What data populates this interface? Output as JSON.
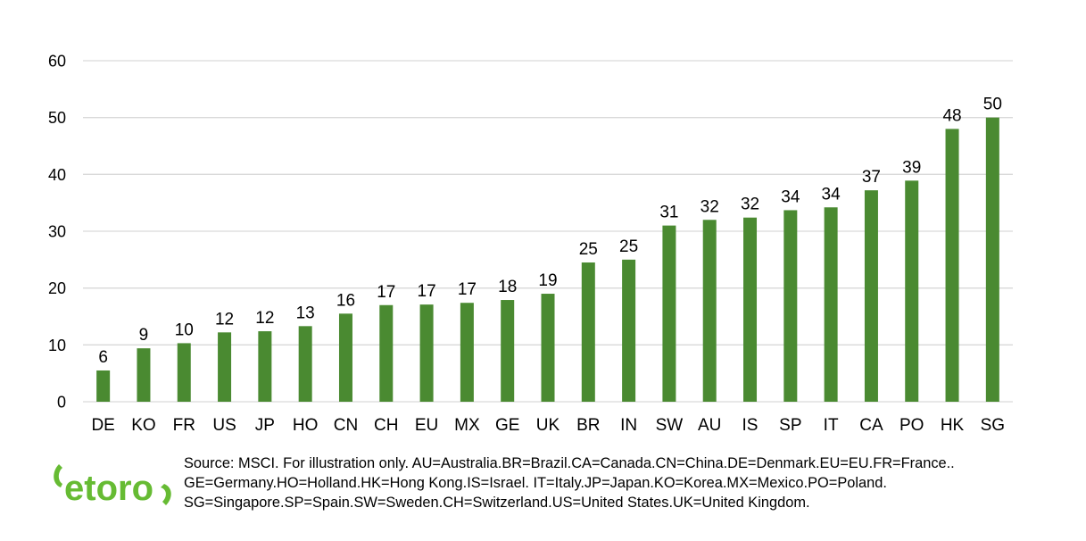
{
  "chart_data": {
    "type": "bar",
    "categories": [
      "DE",
      "KO",
      "FR",
      "US",
      "JP",
      "HO",
      "CN",
      "CH",
      "EU",
      "MX",
      "GE",
      "UK",
      "BR",
      "IN",
      "SW",
      "AU",
      "IS",
      "SP",
      "IT",
      "CA",
      "PO",
      "HK",
      "SG"
    ],
    "values": [
      5.5,
      9.4,
      10.3,
      12.2,
      12.4,
      13.3,
      15.5,
      17.0,
      17.1,
      17.4,
      17.9,
      19.0,
      24.5,
      25.0,
      31.0,
      32.0,
      32.4,
      33.7,
      34.2,
      37.2,
      38.9,
      48.0,
      50.0
    ],
    "data_labels": [
      "6",
      "9",
      "10",
      "12",
      "12",
      "13",
      "16",
      "17",
      "17",
      "17",
      "18",
      "19",
      "25",
      "25",
      "31",
      "32",
      "32",
      "34",
      "34",
      "37",
      "39",
      "48",
      "50"
    ],
    "ylim": [
      0,
      60
    ],
    "yticks": [
      0,
      10,
      20,
      30,
      40,
      50,
      60
    ],
    "grid": true,
    "bar_color": "#4a8a31",
    "grid_color": "#d9d9d9",
    "title": "",
    "xlabel": "",
    "ylabel": ""
  },
  "logo": {
    "text": "etoro",
    "color": "#66bb33",
    "icon": "etoro-logo"
  },
  "source_lines": [
    "Source: MSCI. For illustration only. AU=Australia.BR=Brazil.CA=Canada.CN=China.DE=Denmark.EU=EU.FR=France..",
    "GE=Germany.HO=Holland.HK=Hong Kong.IS=Israel. IT=Italy.JP=Japan.KO=Korea.MX=Mexico.PO=Poland.",
    "SG=Singapore.SP=Spain.SW=Sweden.CH=Switzerland.US=United States.UK=United Kingdom."
  ]
}
